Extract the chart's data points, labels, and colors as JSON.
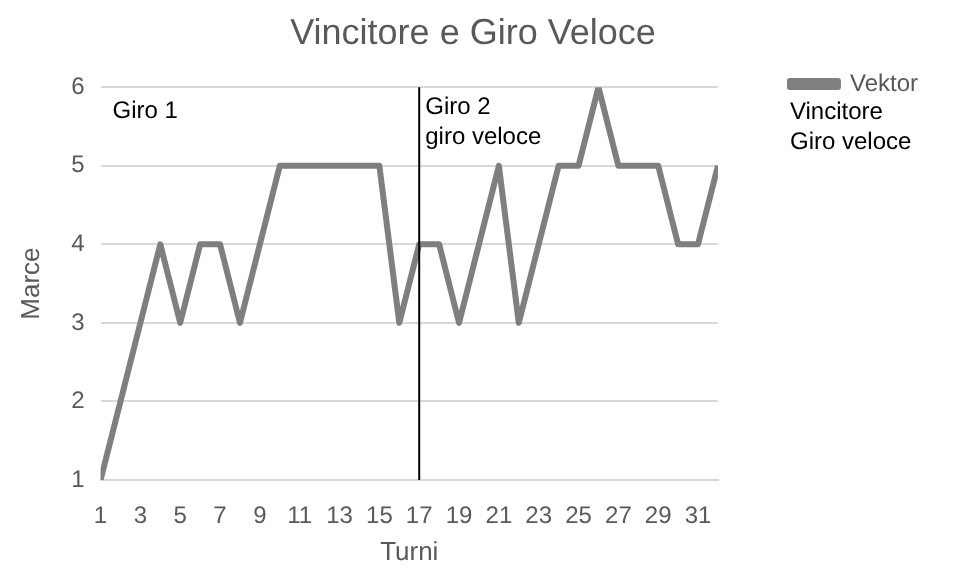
{
  "chart_data": {
    "type": "line",
    "title": "Vincitore e Giro Veloce",
    "xlabel": "Turni",
    "ylabel": "Marce",
    "x": [
      1,
      2,
      3,
      4,
      5,
      6,
      7,
      8,
      9,
      10,
      11,
      12,
      13,
      14,
      15,
      16,
      17,
      18,
      19,
      20,
      21,
      22,
      23,
      24,
      25,
      26,
      27,
      28,
      29,
      30,
      31,
      32
    ],
    "series": [
      {
        "name": "Vektor",
        "color": "#7f7f7f",
        "values": [
          1,
          2,
          3,
          4,
          3,
          4,
          4,
          3,
          4,
          5,
          5,
          5,
          5,
          5,
          5,
          3,
          4,
          4,
          3,
          4,
          5,
          3,
          4,
          5,
          5,
          6,
          5,
          5,
          5,
          4,
          4,
          5
        ]
      }
    ],
    "xlim": [
      1,
      32
    ],
    "xticks": [
      1,
      3,
      5,
      7,
      9,
      11,
      13,
      15,
      17,
      19,
      21,
      23,
      25,
      27,
      29,
      31
    ],
    "ylim": [
      1,
      6
    ],
    "yticks": [
      1,
      2,
      3,
      4,
      5,
      6
    ],
    "grid": "y",
    "legend": "right",
    "marker": "none",
    "line_style": "solid",
    "ref_lines": [
      {
        "axis": "x",
        "value": 17,
        "label": "Giro 2\ngiro veloce",
        "color": "#000000"
      }
    ],
    "annotations": [
      "Giro 1",
      "Vincitore\nGiro veloce"
    ]
  }
}
